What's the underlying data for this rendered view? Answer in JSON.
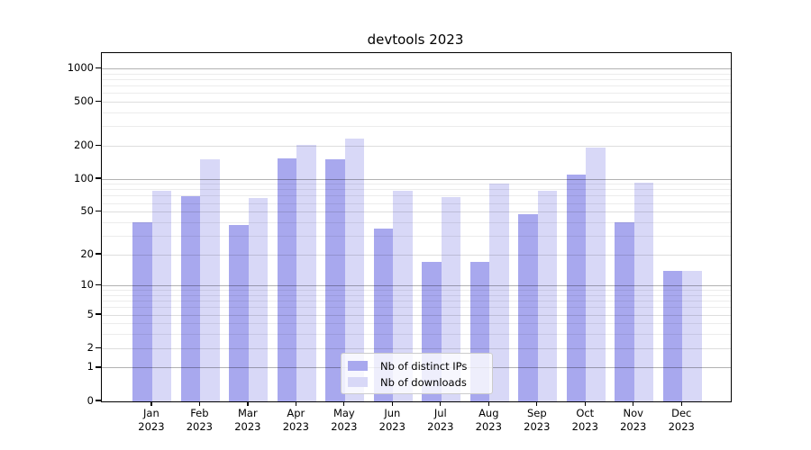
{
  "chart_data": {
    "type": "bar",
    "title": "devtools 2023",
    "categories": [
      "Jan 2023",
      "Feb 2023",
      "Mar 2023",
      "Apr 2023",
      "May 2023",
      "Jun 2023",
      "Jul 2023",
      "Aug 2023",
      "Sep 2023",
      "Oct 2023",
      "Nov 2023",
      "Dec 2023"
    ],
    "x_months": [
      "Jan",
      "Feb",
      "Mar",
      "Apr",
      "May",
      "Jun",
      "Jul",
      "Aug",
      "Sep",
      "Oct",
      "Nov",
      "Dec"
    ],
    "x_year": "2023",
    "series": [
      {
        "name": "Nb of distinct IPs",
        "color": "#a8a8ee",
        "values": [
          40,
          70,
          38,
          155,
          153,
          35,
          17,
          17,
          48,
          111,
          40,
          14
        ]
      },
      {
        "name": "Nb of downloads",
        "color": "#d8d8f7",
        "values": [
          79,
          151,
          67,
          205,
          234,
          78,
          68,
          92,
          78,
          194,
          93,
          14
        ]
      }
    ],
    "xlabel": "",
    "ylabel": "",
    "yscale": "log1p",
    "ylim": [
      0,
      1384
    ],
    "ytick_labels": [
      "0",
      "1",
      "2",
      "5",
      "10",
      "20",
      "50",
      "100",
      "200",
      "500",
      "1000"
    ],
    "ytick_values": [
      0,
      1,
      2,
      5,
      10,
      20,
      50,
      100,
      200,
      500,
      1000
    ],
    "y_gridlines_major": [
      1,
      10,
      100,
      1000
    ],
    "y_gridlines_mid": [
      2,
      5,
      20,
      50,
      200,
      500
    ],
    "y_gridlines_minor": [
      3,
      4,
      6,
      7,
      8,
      9,
      30,
      40,
      60,
      70,
      80,
      90,
      300,
      400,
      600,
      700,
      800,
      900
    ],
    "grid": true,
    "legend_position": "lower center"
  }
}
